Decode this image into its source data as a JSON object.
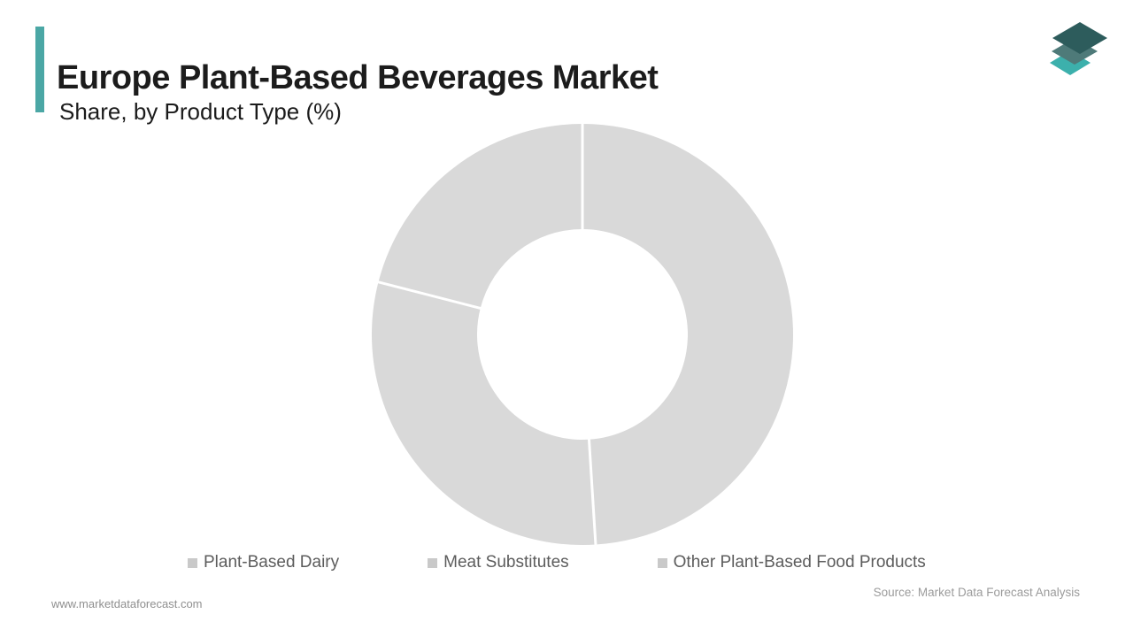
{
  "header": {
    "title": "Europe Plant-Based Beverages Market",
    "subtitle": "Share, by Product Type (%)",
    "accent_color": "#4ba7a5"
  },
  "logo": {
    "name": "market-data-forecast-logo",
    "layer_colors": [
      "#3cb0ac",
      "#4e7a79",
      "#2d5c5c"
    ]
  },
  "chart_data": {
    "type": "pie",
    "variant": "donut",
    "title": "Europe Plant-Based Beverages Market Share, by Product Type (%)",
    "categories": [
      "Plant-Based Dairy",
      "Meat Substitutes",
      "Other Plant-Based Food Products"
    ],
    "values": [
      49,
      30,
      21
    ],
    "unit": "%",
    "slice_colors": [
      "#d9d9d9",
      "#d9d9d9",
      "#d9d9d9"
    ],
    "separator_color": "#ffffff",
    "start_angle_deg": 0,
    "clockwise": true,
    "inner_radius_ratio": 0.5,
    "data_labels": false,
    "legend_position": "bottom",
    "legend_marker_color": "#c9c9c9"
  },
  "footer": {
    "website": "www.marketdataforecast.com",
    "source": "Source: Market Data Forecast Analysis"
  }
}
